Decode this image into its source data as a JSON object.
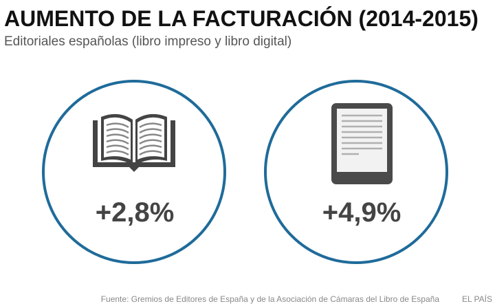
{
  "header": {
    "title": "AUMENTO DE LA FACTURACIÓN (2014-2015)",
    "subtitle": "Editoriales españolas (libro impreso y libro digital)"
  },
  "items": [
    {
      "value": "+2,8%"
    },
    {
      "value": "+4,9%"
    }
  ],
  "footer": {
    "source": "Fuente: Gremios de Editores de España y de la Asociación de Cámaras del Libro de España",
    "brand": "EL PAÍS"
  }
}
